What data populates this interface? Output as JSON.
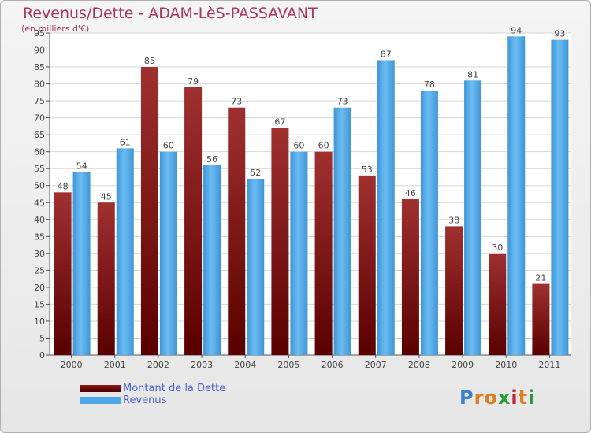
{
  "header": {
    "title": "Revenus/Dette - ADAM-LèS-PASSAVANT",
    "subtitle": "(en milliers d'€)"
  },
  "legend": {
    "items": [
      {
        "label": "Montant de la Dette",
        "color": "#6b0000"
      },
      {
        "label": "Revenus",
        "color": "#4da6e6"
      }
    ]
  },
  "logo": {
    "letters": [
      "P",
      "r",
      "o",
      "x",
      "i",
      "t",
      "i"
    ],
    "colors": [
      "#3a7fd0",
      "#e07b1f",
      "#e07b1f",
      "#2f9a3c",
      "#c1263a",
      "#e07b1f",
      "#2f9a3c"
    ]
  },
  "chart_data": {
    "type": "bar",
    "categories": [
      "2000",
      "2001",
      "2002",
      "2003",
      "2004",
      "2005",
      "2006",
      "2007",
      "2008",
      "2009",
      "2010",
      "2011"
    ],
    "series": [
      {
        "name": "Montant de la Dette",
        "color": "#7a1414",
        "values": [
          48,
          45,
          85,
          79,
          73,
          67,
          60,
          53,
          46,
          38,
          30,
          21
        ]
      },
      {
        "name": "Revenus",
        "color": "#4da6e6",
        "values": [
          54,
          61,
          60,
          56,
          52,
          60,
          73,
          87,
          78,
          81,
          94,
          93
        ]
      }
    ],
    "yticks": [
      0,
      5,
      10,
      15,
      20,
      25,
      30,
      35,
      40,
      45,
      50,
      55,
      60,
      65,
      70,
      75,
      80,
      85,
      90,
      95
    ],
    "ylim": [
      0,
      95
    ],
    "grid": true
  }
}
